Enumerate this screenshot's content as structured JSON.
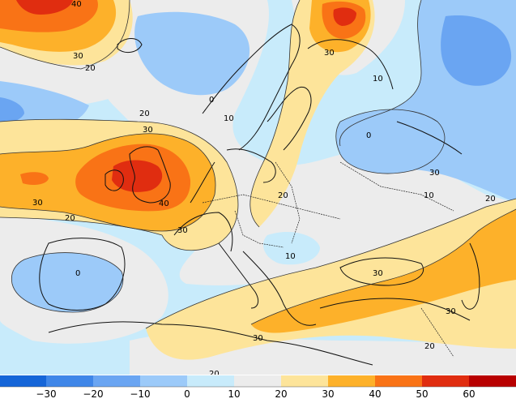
{
  "colors": {
    "below_neg30": "#1565d8",
    "neg30_neg20": "#3f86e8",
    "neg20_neg10": "#6aa5f2",
    "neg10_0": "#9ccaf9",
    "zero_10": "#c8ebfb",
    "ten_20": "#ececec",
    "twenty_30": "#fde49a",
    "thirty_40": "#fdb12a",
    "forty_50": "#f97316",
    "fifty_60": "#e02d10",
    "sixty_70": "#b80000",
    "above_70": "#8a0000",
    "coast": "#111111",
    "contour": "#333333"
  },
  "contour_labels": [
    {
      "value": "40"
    },
    {
      "value": "30"
    },
    {
      "value": "20"
    },
    {
      "value": "30"
    },
    {
      "value": "10"
    },
    {
      "value": "0"
    },
    {
      "value": "10"
    },
    {
      "value": "0"
    },
    {
      "value": "20"
    },
    {
      "value": "30"
    },
    {
      "value": "40"
    },
    {
      "value": "30"
    },
    {
      "value": "20"
    },
    {
      "value": "0"
    },
    {
      "value": "20"
    },
    {
      "value": "30"
    },
    {
      "value": "10"
    },
    {
      "value": "30"
    },
    {
      "value": "10"
    },
    {
      "value": "20"
    },
    {
      "value": "30"
    },
    {
      "value": "30"
    },
    {
      "value": "20"
    },
    {
      "value": "20"
    },
    {
      "value": "30"
    }
  ],
  "colorbar": {
    "ticks": [
      "−30",
      "−20",
      "−10",
      "0",
      "10",
      "20",
      "30",
      "40",
      "50",
      "60"
    ]
  }
}
